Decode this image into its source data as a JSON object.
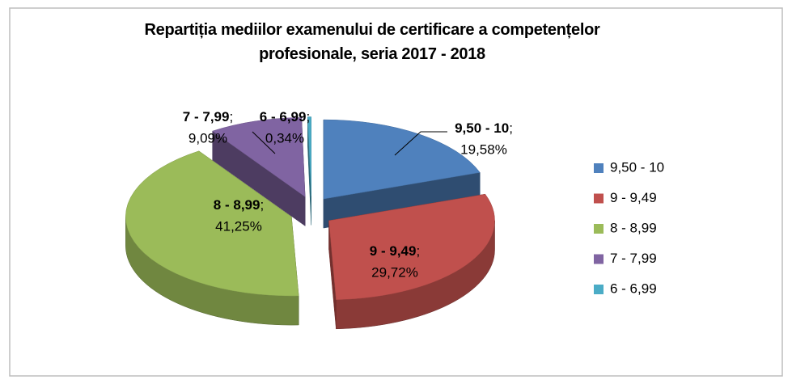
{
  "chart_data": {
    "type": "pie",
    "title": "Repartiția mediilor examenului de certificare a competențelor profesionale, seria 2017 - 2018",
    "categories": [
      "9,50 - 10",
      "9 - 9,49",
      "8 - 8,99",
      "7 - 7,99",
      "6 - 6,99"
    ],
    "values": [
      19.58,
      29.72,
      41.25,
      9.09,
      0.34
    ],
    "value_labels": [
      "19,58%",
      "29,72%",
      "41,25%",
      "9,09%",
      "0,34%"
    ],
    "label_separator": ";",
    "colors": [
      "#4f81bd",
      "#c0504d",
      "#9bbb59",
      "#8064a2",
      "#4bacc6"
    ],
    "legend": "right"
  }
}
